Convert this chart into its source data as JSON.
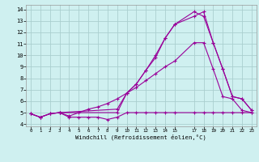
{
  "bg_color": "#cff0f0",
  "grid_color": "#aacfcf",
  "line_color": "#990099",
  "xlabel": "Windchill (Refroidissement éolien,°C)",
  "xlim": [
    -0.5,
    23.5
  ],
  "ylim": [
    3.8,
    14.4
  ],
  "yticks": [
    4,
    5,
    6,
    7,
    8,
    9,
    10,
    11,
    12,
    13,
    14
  ],
  "xticks": [
    0,
    1,
    2,
    3,
    4,
    5,
    6,
    7,
    8,
    9,
    10,
    11,
    12,
    13,
    14,
    15,
    17,
    18,
    19,
    20,
    21,
    22,
    23
  ],
  "lines": [
    {
      "x": [
        0,
        1,
        2,
        3,
        4,
        5,
        6,
        7,
        8,
        9,
        10,
        11,
        12,
        13,
        14,
        15,
        17,
        18,
        19,
        20,
        21,
        22,
        23
      ],
      "y": [
        4.9,
        4.6,
        4.9,
        5.0,
        4.6,
        4.6,
        4.6,
        4.6,
        4.4,
        4.6,
        5.0,
        5.0,
        5.0,
        5.0,
        5.0,
        5.0,
        5.0,
        5.0,
        5.0,
        5.0,
        5.0,
        5.0,
        5.0
      ]
    },
    {
      "x": [
        0,
        1,
        2,
        3,
        4,
        5,
        6,
        7,
        8,
        9,
        10,
        11,
        12,
        13,
        14,
        15,
        17,
        18,
        19,
        20,
        21,
        22,
        23
      ],
      "y": [
        4.9,
        4.6,
        4.9,
        5.0,
        4.7,
        5.0,
        5.3,
        5.5,
        5.8,
        6.2,
        6.7,
        7.2,
        7.8,
        8.4,
        9.0,
        9.5,
        11.1,
        11.1,
        8.8,
        6.4,
        6.2,
        5.2,
        5.0
      ]
    },
    {
      "x": [
        0,
        1,
        2,
        3,
        9,
        10,
        11,
        12,
        13,
        14,
        15,
        17,
        18,
        19,
        20,
        21,
        22,
        23
      ],
      "y": [
        4.9,
        4.6,
        4.9,
        5.0,
        5.3,
        6.7,
        7.5,
        8.7,
        9.8,
        11.5,
        12.7,
        13.4,
        13.8,
        11.1,
        8.8,
        6.4,
        6.2,
        5.2
      ]
    },
    {
      "x": [
        3,
        9,
        10,
        11,
        12,
        13,
        14,
        15,
        17,
        18,
        19,
        20,
        21,
        22,
        23
      ],
      "y": [
        5.0,
        5.0,
        6.7,
        7.5,
        8.7,
        10.0,
        11.5,
        12.7,
        13.8,
        13.4,
        11.1,
        8.8,
        6.4,
        6.2,
        5.2
      ]
    }
  ]
}
